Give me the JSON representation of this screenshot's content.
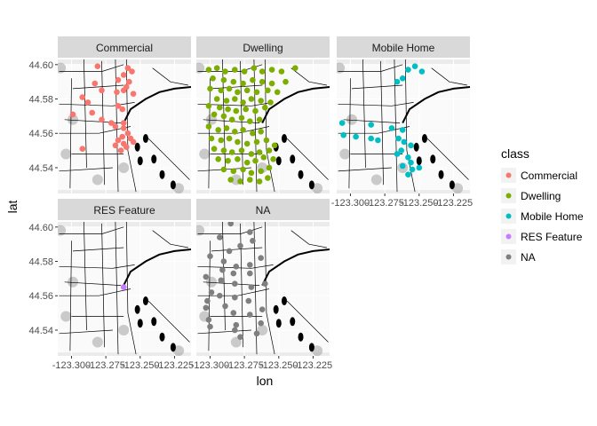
{
  "chart_data": {
    "type": "scatter",
    "facet_by": "class",
    "xlabel": "lon",
    "ylabel": "lat",
    "xlim": [
      -123.31,
      -123.213
    ],
    "ylim": [
      44.525,
      44.603
    ],
    "xticks": [
      -123.3,
      -123.275,
      -123.25,
      -123.225
    ],
    "xtick_labels": [
      "-123.300",
      "-123.275",
      "-123.250",
      "-123.225"
    ],
    "yticks": [
      44.54,
      44.56,
      44.58,
      44.6
    ],
    "ytick_labels": [
      "44.54",
      "44.56",
      "44.58",
      "44.60"
    ],
    "grid": true,
    "legend": {
      "title": "class",
      "position": "right"
    },
    "panels": [
      {
        "name": "Commercial",
        "color": "#F8766D",
        "points": [
          [
            -123.281,
            44.599
          ],
          [
            -123.259,
            44.598
          ],
          [
            -123.256,
            44.596
          ],
          [
            -123.262,
            44.594
          ],
          [
            -123.266,
            44.591
          ],
          [
            -123.258,
            44.59
          ],
          [
            -123.283,
            44.589
          ],
          [
            -123.26,
            44.587
          ],
          [
            -123.278,
            44.585
          ],
          [
            -123.262,
            44.585
          ],
          [
            -123.267,
            44.584
          ],
          [
            -123.255,
            44.583
          ],
          [
            -123.292,
            44.581
          ],
          [
            -123.288,
            44.578
          ],
          [
            -123.266,
            44.576
          ],
          [
            -123.263,
            44.574
          ],
          [
            -123.285,
            44.572
          ],
          [
            -123.299,
            44.571
          ],
          [
            -123.278,
            44.568
          ],
          [
            -123.271,
            44.566
          ],
          [
            -123.268,
            44.564
          ],
          [
            -123.262,
            44.566
          ],
          [
            -123.262,
            44.563
          ],
          [
            -123.259,
            44.56
          ],
          [
            -123.263,
            44.558
          ],
          [
            -123.257,
            44.557
          ],
          [
            -123.266,
            44.556
          ],
          [
            -123.262,
            44.554
          ],
          [
            -123.255,
            44.555
          ],
          [
            -123.26,
            44.552
          ],
          [
            -123.268,
            44.553
          ],
          [
            -123.292,
            44.551
          ],
          [
            -123.264,
            44.55
          ]
        ]
      },
      {
        "name": "Dwelling",
        "color": "#7CAE00",
        "points": [
          [
            -123.301,
            44.597
          ],
          [
            -123.295,
            44.598
          ],
          [
            -123.289,
            44.596
          ],
          [
            -123.282,
            44.597
          ],
          [
            -123.275,
            44.596
          ],
          [
            -123.268,
            44.598
          ],
          [
            -123.262,
            44.596
          ],
          [
            -123.255,
            44.597
          ],
          [
            -123.248,
            44.596
          ],
          [
            -123.238,
            44.598
          ],
          [
            -123.298,
            44.592
          ],
          [
            -123.29,
            44.591
          ],
          [
            -123.283,
            44.59
          ],
          [
            -123.276,
            44.589
          ],
          [
            -123.269,
            44.591
          ],
          [
            -123.262,
            44.59
          ],
          [
            -123.255,
            44.589
          ],
          [
            -123.245,
            44.59
          ],
          [
            -123.3,
            44.586
          ],
          [
            -123.292,
            44.585
          ],
          [
            -123.286,
            44.586
          ],
          [
            -123.28,
            44.584
          ],
          [
            -123.273,
            44.585
          ],
          [
            -123.266,
            44.584
          ],
          [
            -123.258,
            44.585
          ],
          [
            -123.251,
            44.584
          ],
          [
            -123.295,
            44.58
          ],
          [
            -123.288,
            44.579
          ],
          [
            -123.282,
            44.58
          ],
          [
            -123.276,
            44.578
          ],
          [
            -123.27,
            44.58
          ],
          [
            -123.263,
            44.579
          ],
          [
            -123.256,
            44.578
          ],
          [
            -123.301,
            44.576
          ],
          [
            -123.293,
            44.575
          ],
          [
            -123.287,
            44.574
          ],
          [
            -123.281,
            44.573
          ],
          [
            -123.274,
            44.574
          ],
          [
            -123.267,
            44.573
          ],
          [
            -123.26,
            44.575
          ],
          [
            -123.297,
            44.571
          ],
          [
            -123.29,
            44.57
          ],
          [
            -123.284,
            44.568
          ],
          [
            -123.277,
            44.569
          ],
          [
            -123.271,
            44.567
          ],
          [
            -123.264,
            44.568
          ],
          [
            -123.301,
            44.564
          ],
          [
            -123.294,
            44.562
          ],
          [
            -123.288,
            44.563
          ],
          [
            -123.282,
            44.561
          ],
          [
            -123.276,
            44.562
          ],
          [
            -123.269,
            44.56
          ],
          [
            -123.263,
            44.561
          ],
          [
            -123.299,
            44.557
          ],
          [
            -123.292,
            44.556
          ],
          [
            -123.286,
            44.557
          ],
          [
            -123.28,
            44.555
          ],
          [
            -123.273,
            44.554
          ],
          [
            -123.266,
            44.555
          ],
          [
            -123.259,
            44.556
          ],
          [
            -123.253,
            44.553
          ],
          [
            -123.297,
            44.551
          ],
          [
            -123.29,
            44.55
          ],
          [
            -123.284,
            44.549
          ],
          [
            -123.277,
            44.55
          ],
          [
            -123.27,
            44.548
          ],
          [
            -123.264,
            44.549
          ],
          [
            -123.257,
            44.55
          ],
          [
            -123.294,
            44.545
          ],
          [
            -123.287,
            44.544
          ],
          [
            -123.28,
            44.545
          ],
          [
            -123.273,
            44.543
          ],
          [
            -123.267,
            44.544
          ],
          [
            -123.261,
            44.546
          ],
          [
            -123.254,
            44.545
          ],
          [
            -123.29,
            44.539
          ],
          [
            -123.283,
            44.538
          ],
          [
            -123.276,
            44.539
          ],
          [
            -123.27,
            44.537
          ],
          [
            -123.263,
            44.538
          ],
          [
            -123.257,
            44.54
          ],
          [
            -123.285,
            44.533
          ],
          [
            -123.278,
            44.532
          ],
          [
            -123.271,
            44.533
          ],
          [
            -123.264,
            44.532
          ],
          [
            -123.258,
            44.534
          ]
        ]
      },
      {
        "name": "Mobile Home",
        "color": "#00BFC4",
        "points": [
          [
            -123.253,
            44.599
          ],
          [
            -123.258,
            44.597
          ],
          [
            -123.248,
            44.596
          ],
          [
            -123.262,
            44.592
          ],
          [
            -123.266,
            44.59
          ],
          [
            -123.306,
            44.566
          ],
          [
            -123.285,
            44.565
          ],
          [
            -123.27,
            44.563
          ],
          [
            -123.262,
            44.562
          ],
          [
            -123.305,
            44.559
          ],
          [
            -123.296,
            44.558
          ],
          [
            -123.285,
            44.557
          ],
          [
            -123.28,
            44.556
          ],
          [
            -123.265,
            44.557
          ],
          [
            -123.261,
            44.555
          ],
          [
            -123.256,
            44.553
          ],
          [
            -123.263,
            44.55
          ],
          [
            -123.266,
            44.548
          ],
          [
            -123.258,
            44.546
          ],
          [
            -123.256,
            44.543
          ],
          [
            -123.262,
            44.541
          ],
          [
            -123.255,
            44.539
          ],
          [
            -123.25,
            44.54
          ],
          [
            -123.258,
            44.536
          ]
        ]
      },
      {
        "name": "RES Feature",
        "color": "#C77CFF",
        "points": [
          [
            -123.262,
            44.565
          ]
        ]
      },
      {
        "name": "NA",
        "color": "#7F7F7F",
        "points": [
          [
            -123.285,
            44.602
          ],
          [
            -123.271,
            44.597
          ],
          [
            -123.293,
            44.594
          ],
          [
            -123.269,
            44.592
          ],
          [
            -123.278,
            44.589
          ],
          [
            -123.286,
            44.586
          ],
          [
            -123.3,
            44.583
          ],
          [
            -123.263,
            44.582
          ],
          [
            -123.29,
            44.58
          ],
          [
            -123.271,
            44.578
          ],
          [
            -123.281,
            44.577
          ],
          [
            -123.291,
            44.575
          ],
          [
            -123.283,
            44.573
          ],
          [
            -123.271,
            44.573
          ],
          [
            -123.303,
            44.571
          ],
          [
            -123.292,
            44.569
          ],
          [
            -123.282,
            44.567
          ],
          [
            -123.26,
            44.567
          ],
          [
            -123.27,
            44.565
          ],
          [
            -123.299,
            44.562
          ],
          [
            -123.293,
            44.56
          ],
          [
            -123.282,
            44.559
          ],
          [
            -123.302,
            44.557
          ],
          [
            -123.272,
            44.557
          ],
          [
            -123.289,
            44.554
          ],
          [
            -123.303,
            44.553
          ],
          [
            -123.262,
            44.552
          ],
          [
            -123.283,
            44.55
          ],
          [
            -123.271,
            44.549
          ],
          [
            -123.301,
            44.546
          ],
          [
            -123.263,
            44.544
          ],
          [
            -123.281,
            44.543
          ],
          [
            -123.3,
            44.542
          ],
          [
            -123.282,
            44.54
          ],
          [
            -123.266,
            44.538
          ],
          [
            -123.278,
            44.536
          ]
        ]
      }
    ]
  },
  "legend_items": [
    {
      "label": "Commercial",
      "color": "#F8766D"
    },
    {
      "label": "Dwelling",
      "color": "#7CAE00"
    },
    {
      "label": "Mobile Home",
      "color": "#00BFC4"
    },
    {
      "label": "RES Feature",
      "color": "#C77CFF"
    },
    {
      "label": "NA",
      "color": "#7F7F7F"
    }
  ],
  "colors": {
    "panel_bg": "#EBEBEB",
    "strip_bg": "#D9D9D9",
    "grid": "#FFFFFF",
    "map_lines": "#000000"
  }
}
